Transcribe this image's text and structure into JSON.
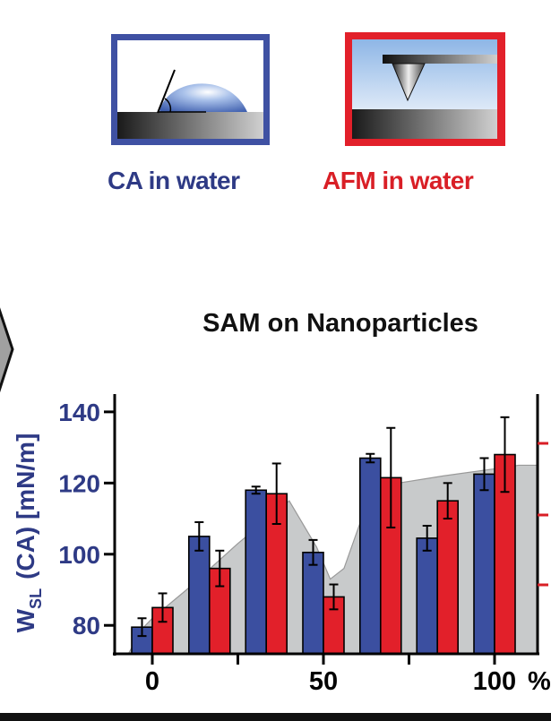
{
  "legend": {
    "ca_label": "CA in water",
    "afm_label": "AFM in water"
  },
  "colors": {
    "ca": "#3b4fa0",
    "afm": "#e2202a",
    "axis_left": "#2e3a85",
    "axis_right": "#d91f26",
    "background_area": "#c8cacb"
  },
  "icons": [
    "contact-angle-droplet-icon",
    "afm-tip-icon",
    "chevron-right-icon"
  ],
  "chart_data": {
    "type": "bar",
    "title": "SAM on Nanoparticles",
    "ylabel": "W_SL (CA) [mN/m]",
    "ylabel_main": "W",
    "ylabel_sub": "SL",
    "ylabel_rest": "(CA) [mN/m]",
    "xunit": "%",
    "ylim": [
      72,
      145
    ],
    "yticks": [
      80,
      100,
      120,
      140
    ],
    "xlim": [
      -10,
      107
    ],
    "xticks": [
      0,
      25,
      50,
      75,
      100
    ],
    "xtick_labels": [
      "0",
      "",
      "50",
      "",
      "100"
    ],
    "groups_x": [
      0,
      16.7,
      33.3,
      50,
      66.7,
      83.3,
      100
    ],
    "series": [
      {
        "name": "CA in water",
        "values": [
          79.5,
          105,
          118,
          100.5,
          127,
          104.5,
          122.5
        ],
        "errors": [
          2.5,
          4,
          1,
          3.5,
          1.2,
          3.5,
          4.5
        ]
      },
      {
        "name": "AFM in water",
        "values": [
          85,
          96,
          117,
          88,
          121.5,
          115,
          128
        ],
        "errors": [
          4,
          5,
          8.5,
          3.5,
          14,
          5,
          10.5
        ]
      }
    ],
    "background_area": {
      "x": [
        -7,
        -3,
        0,
        10,
        25,
        40,
        48,
        52,
        56,
        63,
        72,
        85,
        100,
        107
      ],
      "y": [
        72,
        79,
        82,
        90,
        103,
        115,
        102,
        93,
        96,
        115,
        120,
        122,
        124,
        125
      ]
    }
  }
}
